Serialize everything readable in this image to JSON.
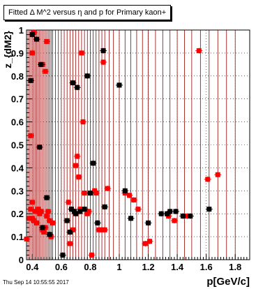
{
  "title": "Fitted Δ M^2 versus η and p for Primary kaon+",
  "timestamp": "Thu Sep 14 10:55:55 2017",
  "chart_data": {
    "type": "scatter",
    "xlabel": "p[GeV/c]",
    "ylabel": "z_{dM2}",
    "xlim": [
      0.36,
      1.9
    ],
    "ylim": [
      0,
      1
    ],
    "x_ticks": [
      0.4,
      0.6,
      0.8,
      1.0,
      1.2,
      1.4,
      1.6,
      1.8
    ],
    "x_tick_labels": [
      "0.4",
      "0.6",
      "0.8",
      "1",
      "1.2",
      "1.4",
      "1.6",
      "1.8"
    ],
    "y_ticks": [
      0,
      0.1,
      0.2,
      0.3,
      0.4,
      0.5,
      0.6,
      0.7,
      0.8,
      0.9,
      1.0
    ],
    "y_tick_labels": [
      "0",
      "0.1",
      "0.2",
      "0.3",
      "0.4",
      "0.5",
      "0.6",
      "0.7",
      "0.8",
      "0.9",
      "1"
    ],
    "grid": true,
    "colors": {
      "red": "#ff0000",
      "black": "#000000",
      "line": "#990000"
    },
    "series": [
      {
        "color": "red",
        "x": [
          0.36,
          0.38,
          0.39,
          0.4,
          0.4,
          0.41,
          0.42,
          0.43,
          0.44,
          0.45,
          0.46,
          0.47,
          0.48,
          0.49,
          0.5,
          0.51,
          0.52,
          0.53,
          0.54,
          0.39,
          0.4,
          0.41,
          0.47,
          0.49,
          0.5,
          0.65,
          0.66,
          0.68,
          0.7,
          0.71,
          0.72,
          0.73,
          0.74,
          0.75,
          0.76,
          0.78,
          0.79,
          0.81,
          0.83,
          0.84,
          0.86,
          0.88,
          0.89,
          0.9,
          0.92,
          1.04,
          1.07,
          1.1,
          1.13,
          1.18,
          1.21,
          1.34,
          1.38,
          1.44,
          1.47,
          1.55,
          1.61,
          1.68
        ],
        "y": [
          0.09,
          0.18,
          0.22,
          0.25,
          0.18,
          0.17,
          0.21,
          0.16,
          0.22,
          0.2,
          0.21,
          0.13,
          0.12,
          0.14,
          0.19,
          0.21,
          0.17,
          0.1,
          0.16,
          0.54,
          0.9,
          0.99,
          0.85,
          0.82,
          0.95,
          0.25,
          0.07,
          0.13,
          0.41,
          0.45,
          0.36,
          0.22,
          0.9,
          0.6,
          0.29,
          0.2,
          0.21,
          0.02,
          0.3,
          0.29,
          0.13,
          0.13,
          0.86,
          0.13,
          0.31,
          0.29,
          0.28,
          0.26,
          0.22,
          0.07,
          0.08,
          0.19,
          0.17,
          0.19,
          0.19,
          0.91,
          0.35,
          0.37
        ]
      },
      {
        "color": "black",
        "x": [
          0.39,
          0.4,
          0.43,
          0.45,
          0.46,
          0.47,
          0.5,
          0.52,
          0.61,
          0.64,
          0.66,
          0.67,
          0.68,
          0.69,
          0.7,
          0.71,
          0.73,
          0.76,
          0.78,
          0.8,
          0.82,
          0.85,
          0.89,
          0.9,
          1.0,
          1.04,
          1.08,
          1.2,
          1.29,
          1.33,
          1.35,
          1.39,
          1.44,
          1.49,
          1.62
        ],
        "y": [
          0.78,
          0.98,
          0.96,
          0.49,
          0.85,
          0.14,
          0.27,
          0.11,
          0.02,
          0.17,
          0.12,
          0.22,
          0.77,
          0.21,
          0.2,
          0.75,
          0.21,
          0.22,
          0.8,
          0.29,
          0.42,
          0.16,
          0.91,
          0.23,
          0.76,
          0.3,
          0.18,
          0.16,
          0.2,
          0.2,
          0.21,
          0.21,
          0.19,
          0.19,
          0.22
        ]
      }
    ],
    "vertical_lines_x": [
      0.37,
      0.38,
      0.39,
      0.4,
      0.41,
      0.42,
      0.43,
      0.44,
      0.45,
      0.46,
      0.47,
      0.48,
      0.49,
      0.5,
      0.51,
      0.52,
      0.53,
      0.54,
      0.56,
      0.58,
      0.6,
      0.62,
      0.64,
      0.66,
      0.68,
      0.7,
      0.72,
      0.74,
      0.76,
      0.78,
      0.8,
      0.82,
      0.84,
      0.86,
      0.88,
      0.9,
      0.93,
      0.96,
      1.0,
      1.04,
      1.08,
      1.12,
      1.16,
      1.2,
      1.25,
      1.3,
      1.35,
      1.4,
      1.45,
      1.5,
      1.56,
      1.62,
      1.68,
      1.74,
      1.8
    ]
  }
}
